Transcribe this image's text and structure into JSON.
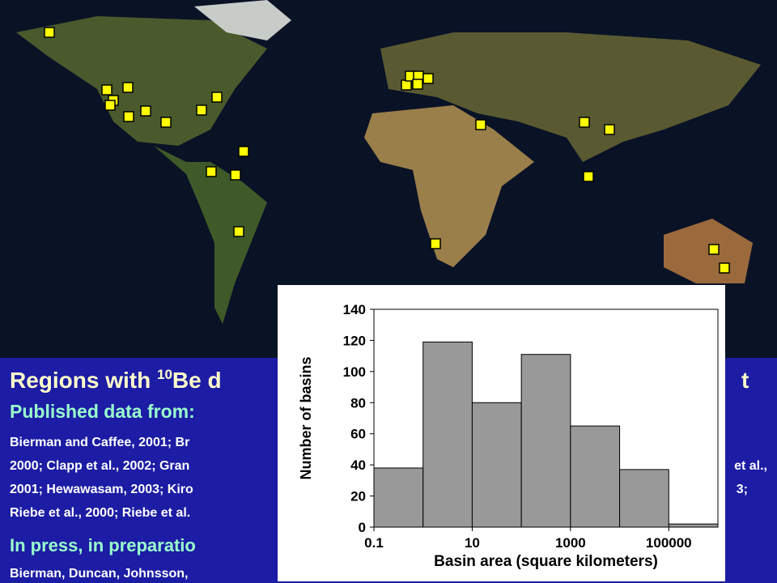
{
  "slide": {
    "title": {
      "start": "Regions with ",
      "sup": "10",
      "rest": "Be d",
      "end": "t"
    },
    "published_heading": "Published data from:",
    "published_lines": [
      "Bierman and Caffee, 2001; Br",
      "2000; Clapp et al., 2002; Gran",
      "2001; Hewawasam, 2003; Kiro",
      "Riebe et al., 2000; Riebe et al."
    ],
    "published_line_ends": [
      "et al.,",
      "3;"
    ],
    "press_heading": "In press, in preparatio",
    "press_line": "Bierman, Duncan, Johnsson,"
  },
  "chart_data": {
    "type": "histogram",
    "bins": [
      0.1,
      1,
      10,
      100,
      1000,
      10000,
      100000,
      1000000
    ],
    "values": [
      38,
      119,
      80,
      111,
      65,
      37,
      2
    ],
    "color": "#999999",
    "x_label": "Basin area (square kilometers)",
    "y_label": "Number of basins",
    "xscale": "log",
    "xlim": [
      0.1,
      1000000
    ],
    "xticks": [
      0.1,
      10,
      1000,
      100000
    ],
    "ylim": [
      0,
      140
    ],
    "yticks": [
      0,
      20,
      40,
      60,
      80,
      100,
      120,
      140
    ]
  }
}
